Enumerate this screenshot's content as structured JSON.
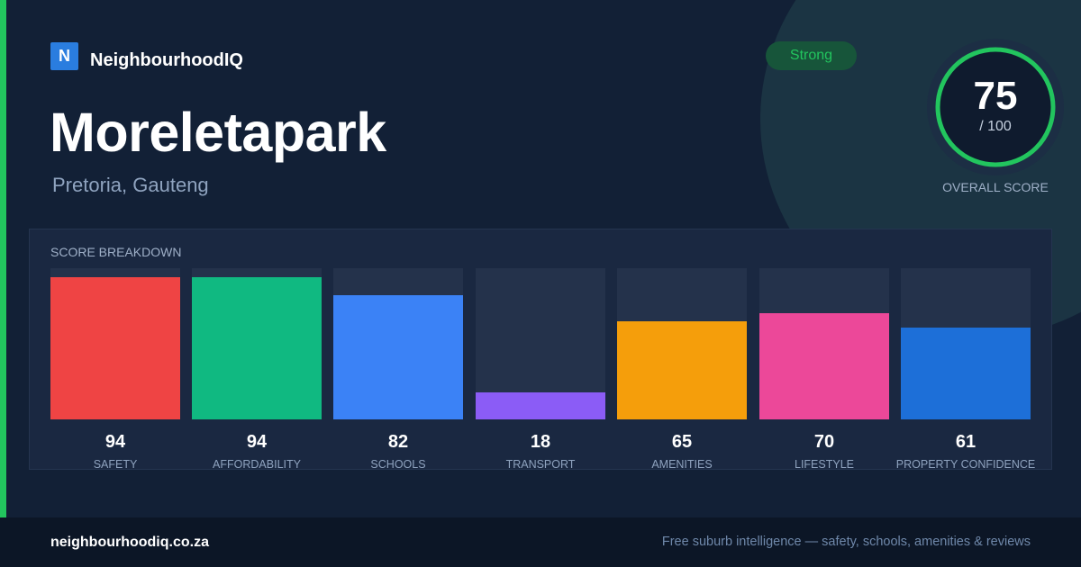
{
  "brand": {
    "logo_letter": "N",
    "name": "NeighbourhoodIQ"
  },
  "suburb": {
    "name": "Moreletapark",
    "region": "Pretoria, Gauteng"
  },
  "status": {
    "label": "Strong",
    "color": "#22c55e"
  },
  "overall": {
    "score": "75",
    "max_label": "/ 100",
    "score_fraction": 0.75,
    "label": "OVERALL SCORE",
    "ring_color": "#22c55e"
  },
  "breakdown": {
    "title": "SCORE BREAKDOWN",
    "items": [
      {
        "label": "SAFETY",
        "score": "94",
        "fill": 0.94,
        "color": "#ef4444"
      },
      {
        "label": "AFFORDABILITY",
        "score": "94",
        "fill": 0.94,
        "color": "#10b981"
      },
      {
        "label": "SCHOOLS",
        "score": "82",
        "fill": 0.82,
        "color": "#3b82f6"
      },
      {
        "label": "TRANSPORT",
        "score": "18",
        "fill": 0.18,
        "color": "#8b5cf6"
      },
      {
        "label": "AMENITIES",
        "score": "65",
        "fill": 0.65,
        "color": "#f59e0b"
      },
      {
        "label": "LIFESTYLE",
        "score": "70",
        "fill": 0.7,
        "color": "#ec4899"
      },
      {
        "label": "PROPERTY CONFIDENCE",
        "score": "61",
        "fill": 0.61,
        "color": "#1d6fd8"
      }
    ]
  },
  "footer": {
    "domain": "neighbourhoodiq.co.za",
    "tagline": "Free suburb intelligence — safety, schools, amenities & reviews"
  }
}
